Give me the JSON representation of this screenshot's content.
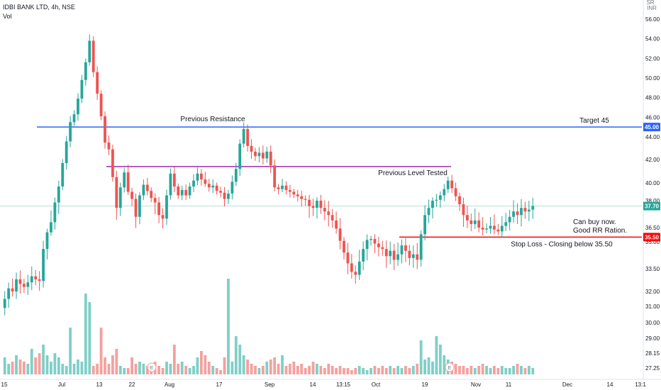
{
  "header": {
    "symbol_line": "IDBI BANK LTD, 4h, NSE",
    "volume_label": "Vol"
  },
  "currency": {
    "top": "SR",
    "unit": "INR"
  },
  "colors": {
    "up": "#26a69a",
    "down": "#ef5350",
    "vol_up": "#7fcfc6",
    "vol_down": "#f4a19e",
    "target": "#2962ff",
    "stop": "#ff0000",
    "tested": "#9c27b0",
    "current": "#26a69a"
  },
  "chart_data": {
    "type": "candlestick",
    "x_axis": {
      "tick_labels": [
        "15",
        "Jul",
        "13",
        "22",
        "Aug",
        "17",
        "Sep",
        "14",
        "13:15",
        "Oct",
        "19",
        "Nov",
        "11",
        "Dec",
        "14",
        "13:1"
      ]
    },
    "y_axis": {
      "ticks": [
        "56.00",
        "54.00",
        "52.00",
        "50.00",
        "48.00",
        "46.00",
        "44.00",
        "42.00",
        "40.00",
        "38.00",
        "36.50",
        "35.00",
        "33.50",
        "32.00",
        "31.00",
        "30.00",
        "29.00",
        "28.15",
        "27.25"
      ]
    },
    "price_badges": [
      {
        "value": 45.0,
        "label": "45.00",
        "color": "#2962ff"
      },
      {
        "value": 37.7,
        "label": "37.70",
        "color": "#26a69a"
      },
      {
        "value": 35.5,
        "label": "35.50",
        "color": "#ff0000"
      }
    ],
    "horizontal_levels": [
      {
        "value": 45.0,
        "label": "Previous Resistance",
        "label2": "Target 45",
        "color": "#2962ff"
      },
      {
        "value": 41.4,
        "label": "Previous Level Tested",
        "color": "#9c27b0"
      },
      {
        "value": 35.5,
        "label": "Stop Loss - Closing below 35.50",
        "color": "#ff0000"
      }
    ],
    "notes": [
      "Can buy now.",
      "Good RR Ration."
    ],
    "events": [
      "E",
      "E"
    ],
    "closes": [
      31.5,
      32.2,
      32.0,
      32.8,
      32.5,
      32.3,
      32.6,
      33.0,
      32.8,
      32.7,
      34.6,
      36.0,
      36.8,
      37.9,
      39.6,
      41.7,
      43.6,
      45.5,
      46.3,
      47.9,
      49.8,
      51.6,
      53.8,
      50.6,
      48.4,
      46.1,
      43.5,
      42.9,
      40.5,
      37.6,
      39.5,
      40.9,
      39.0,
      38.2,
      37.1,
      38.6,
      39.8,
      39.1,
      38.3,
      37.9,
      37.2,
      37.0,
      38.6,
      40.8,
      39.6,
      38.6,
      39.2,
      38.6,
      39.6,
      40.2,
      40.8,
      40.3,
      39.9,
      39.5,
      39.7,
      39.1,
      38.9,
      38.2,
      38.8,
      40.1,
      41.2,
      43.4,
      44.8,
      43.2,
      42.7,
      42.3,
      42.6,
      42.1,
      42.7,
      41.5,
      39.5,
      39.3,
      39.7,
      39.2,
      39.0,
      38.7,
      38.5,
      38.2,
      38.1,
      37.7,
      37.6,
      38.0,
      37.6,
      37.4,
      37.2,
      36.9,
      36.4,
      35.1,
      34.4,
      33.8,
      33.3,
      33.1,
      33.9,
      34.6,
      35.2,
      35.3,
      34.9,
      34.7,
      34.6,
      34.2,
      34.5,
      34.0,
      34.3,
      34.8,
      34.5,
      34.1,
      34.3,
      34.0,
      35.8,
      37.2,
      37.6,
      38.0,
      38.1,
      38.6,
      39.3,
      40.2,
      39.4,
      38.5,
      37.8,
      37.2,
      36.9,
      36.7,
      36.9,
      36.5,
      36.3,
      36.4,
      36.6,
      36.3,
      36.1,
      36.6,
      36.8,
      37.1,
      37.4,
      37.2,
      37.6,
      37.4,
      37.5,
      37.7
    ],
    "volumes": [
      8,
      5,
      6,
      9,
      7,
      6,
      5,
      12,
      8,
      10,
      14,
      9,
      6,
      10,
      8,
      5,
      4,
      22,
      5,
      7,
      6,
      38,
      34,
      4,
      5,
      22,
      8,
      5,
      9,
      12,
      4,
      3,
      3,
      8,
      5,
      6,
      5,
      4,
      5,
      6,
      4,
      3,
      6,
      5,
      14,
      5,
      6,
      4,
      3,
      4,
      8,
      11,
      9,
      6,
      4,
      3,
      2,
      8,
      45,
      6,
      18,
      14,
      9,
      7,
      5,
      4,
      3,
      4,
      6,
      7,
      8,
      5,
      9,
      4,
      5,
      6,
      4,
      5,
      3,
      4,
      6,
      5,
      4,
      3,
      5,
      4,
      3,
      4,
      3,
      3,
      2,
      3,
      4,
      3,
      2,
      3,
      4,
      3,
      4,
      3,
      4,
      3,
      4,
      3,
      4,
      3,
      4,
      5,
      16,
      7,
      8,
      6,
      18,
      14,
      9,
      7,
      6,
      5,
      4,
      4,
      3,
      4,
      3,
      4,
      5,
      4,
      3,
      4,
      3,
      4,
      3,
      3,
      4,
      5,
      4,
      3,
      4,
      3
    ]
  }
}
